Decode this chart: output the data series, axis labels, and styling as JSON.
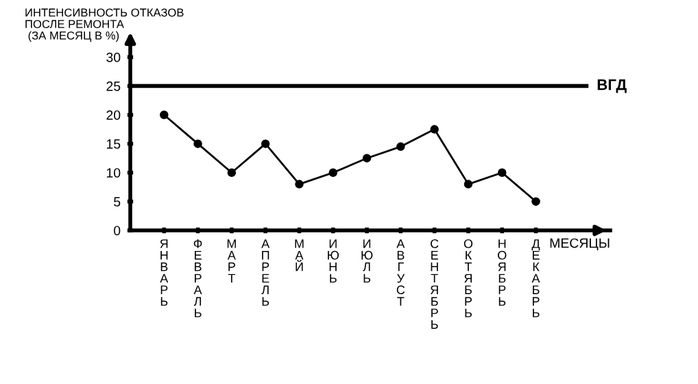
{
  "chart_data": {
    "type": "line",
    "ylabel": "ИНТЕНСИВНОСТЬ ОТКАЗОВ\nПОСЛЕ РЕМОНТА\n (ЗА МЕСЯЦ В %)",
    "xlabel": "МЕСЯЦЫ",
    "categories": [
      "ЯНВАРЬ",
      "ФЕВРАЛЬ",
      "МАРТ",
      "АПРЕЛЬ",
      "МАЙ",
      "ИЮНЬ",
      "ИЮЛЬ",
      "АВГУСТ",
      "СЕНТЯБРЬ",
      "ОКТЯБРЬ",
      "НОЯБРЬ",
      "ДЕКАБРЬ"
    ],
    "series": [
      {
        "color": "#000000",
        "values": [
          20,
          15,
          10,
          15,
          8,
          10,
          12.5,
          14.5,
          17.5,
          8,
          10,
          5
        ]
      }
    ],
    "ylim": [
      0,
      33
    ],
    "yticks": [
      0,
      5,
      10,
      15,
      20,
      25,
      30
    ],
    "ref_lines": [
      {
        "axis": "y",
        "value": 25,
        "label": "ВГД",
        "color": "#000000",
        "line_style": "solid"
      }
    ],
    "marker": "circle",
    "line_style": "solid",
    "grid": false
  }
}
